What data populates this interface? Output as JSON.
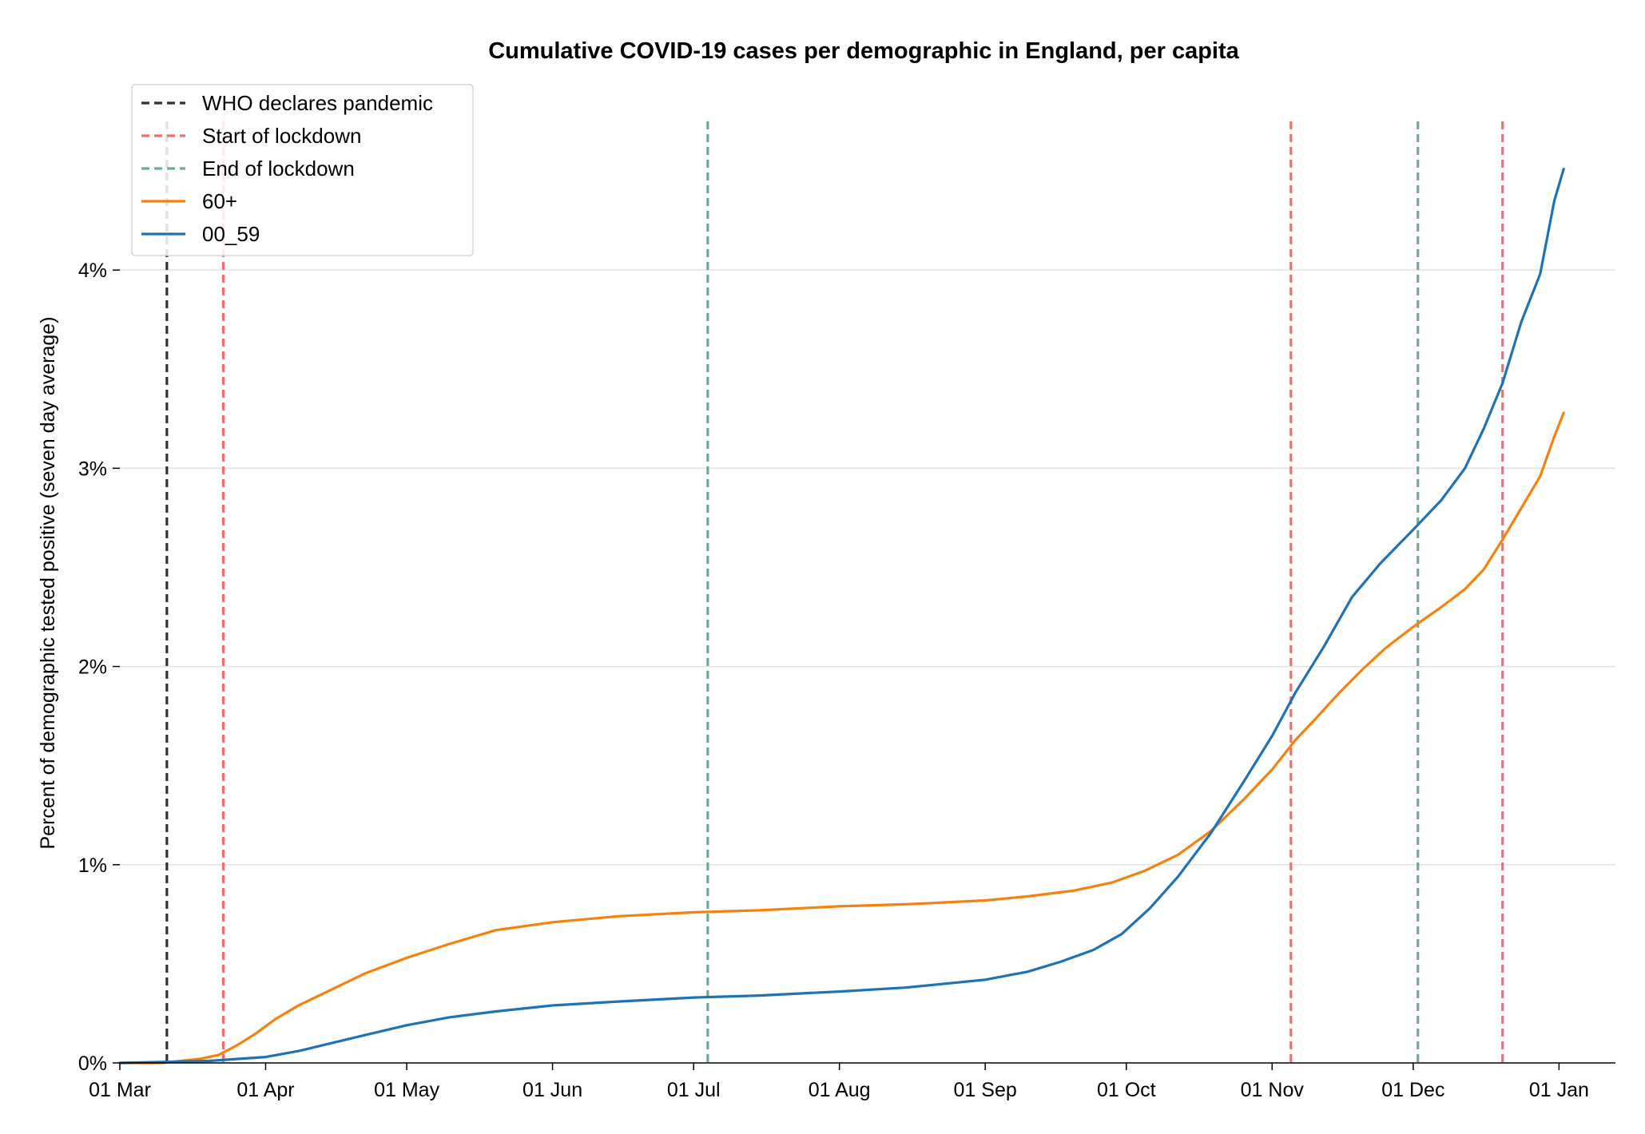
{
  "chart_data": {
    "type": "line",
    "title": "Cumulative COVID-19 cases per demographic in England, per capita",
    "xlabel": "",
    "ylabel": "Percent of demographic tested positive (seven day average)",
    "x_ticks": [
      "01 Mar",
      "01 Apr",
      "01 May",
      "01 Jun",
      "01 Jul",
      "01 Aug",
      "01 Sep",
      "01 Oct",
      "01 Nov",
      "01 Dec",
      "01 Jan"
    ],
    "x_tick_dates": [
      "2020-03-01",
      "2020-04-01",
      "2020-05-01",
      "2020-06-01",
      "2020-07-01",
      "2020-08-01",
      "2020-09-01",
      "2020-10-01",
      "2020-11-01",
      "2020-12-01",
      "2021-01-01"
    ],
    "xlim": [
      "2020-03-01",
      "2021-01-13"
    ],
    "y_ticks": [
      "0%",
      "1%",
      "2%",
      "3%",
      "4%"
    ],
    "y_tick_values": [
      0,
      1,
      2,
      3,
      4
    ],
    "ylim": [
      0,
      4.75
    ],
    "grid": "horizontal",
    "legend_position": "top-left",
    "events": [
      {
        "name": "WHO declares pandemic",
        "date": "2020-03-11",
        "color": "#333333"
      },
      {
        "name": "Start of lockdown",
        "date": "2020-03-23",
        "color": "#f07070"
      },
      {
        "name": "End of lockdown",
        "date": "2020-07-04",
        "color": "#6aad95"
      },
      {
        "name": "Start of lockdown",
        "date": "2020-11-05",
        "color": "#f07070"
      },
      {
        "name": "End of lockdown",
        "date": "2020-12-02",
        "color": "#6aad95"
      },
      {
        "name": "Start of lockdown",
        "date": "2020-12-20",
        "color": "#f07070"
      }
    ],
    "series": [
      {
        "name": "60+",
        "color": "#f5820d",
        "x": [
          "2020-03-01",
          "2020-03-10",
          "2020-03-14",
          "2020-03-18",
          "2020-03-22",
          "2020-03-26",
          "2020-03-30",
          "2020-04-03",
          "2020-04-08",
          "2020-04-15",
          "2020-04-22",
          "2020-05-01",
          "2020-05-10",
          "2020-05-20",
          "2020-06-01",
          "2020-06-15",
          "2020-07-01",
          "2020-07-15",
          "2020-08-01",
          "2020-08-15",
          "2020-09-01",
          "2020-09-10",
          "2020-09-20",
          "2020-09-28",
          "2020-10-05",
          "2020-10-12",
          "2020-10-19",
          "2020-10-26",
          "2020-11-01",
          "2020-11-06",
          "2020-11-10",
          "2020-11-15",
          "2020-11-20",
          "2020-11-25",
          "2020-12-01",
          "2020-12-07",
          "2020-12-12",
          "2020-12-16",
          "2020-12-20",
          "2020-12-24",
          "2020-12-28",
          "2020-12-31",
          "2021-01-02"
        ],
        "values": [
          0,
          0,
          0.01,
          0.02,
          0.04,
          0.09,
          0.15,
          0.22,
          0.29,
          0.37,
          0.45,
          0.53,
          0.6,
          0.67,
          0.71,
          0.74,
          0.76,
          0.77,
          0.79,
          0.8,
          0.82,
          0.84,
          0.87,
          0.91,
          0.97,
          1.05,
          1.17,
          1.33,
          1.48,
          1.63,
          1.73,
          1.86,
          1.98,
          2.09,
          2.2,
          2.3,
          2.39,
          2.49,
          2.64,
          2.8,
          2.96,
          3.16,
          3.28
        ]
      },
      {
        "name": "00_59",
        "color": "#1f73b4",
        "x": [
          "2020-03-01",
          "2020-03-20",
          "2020-03-26",
          "2020-04-01",
          "2020-04-08",
          "2020-04-15",
          "2020-04-22",
          "2020-05-01",
          "2020-05-10",
          "2020-05-20",
          "2020-06-01",
          "2020-06-15",
          "2020-07-01",
          "2020-07-15",
          "2020-08-01",
          "2020-08-15",
          "2020-09-01",
          "2020-09-10",
          "2020-09-17",
          "2020-09-24",
          "2020-09-30",
          "2020-10-06",
          "2020-10-12",
          "2020-10-19",
          "2020-10-26",
          "2020-11-01",
          "2020-11-06",
          "2020-11-12",
          "2020-11-18",
          "2020-11-24",
          "2020-12-01",
          "2020-12-07",
          "2020-12-12",
          "2020-12-16",
          "2020-12-20",
          "2020-12-24",
          "2020-12-28",
          "2020-12-31",
          "2021-01-02"
        ],
        "values": [
          0,
          0.01,
          0.02,
          0.03,
          0.06,
          0.1,
          0.14,
          0.19,
          0.23,
          0.26,
          0.29,
          0.31,
          0.33,
          0.34,
          0.36,
          0.38,
          0.42,
          0.46,
          0.51,
          0.57,
          0.65,
          0.78,
          0.94,
          1.16,
          1.42,
          1.65,
          1.87,
          2.1,
          2.35,
          2.52,
          2.69,
          2.84,
          3.0,
          3.2,
          3.43,
          3.74,
          3.98,
          4.35,
          4.51
        ]
      }
    ]
  }
}
